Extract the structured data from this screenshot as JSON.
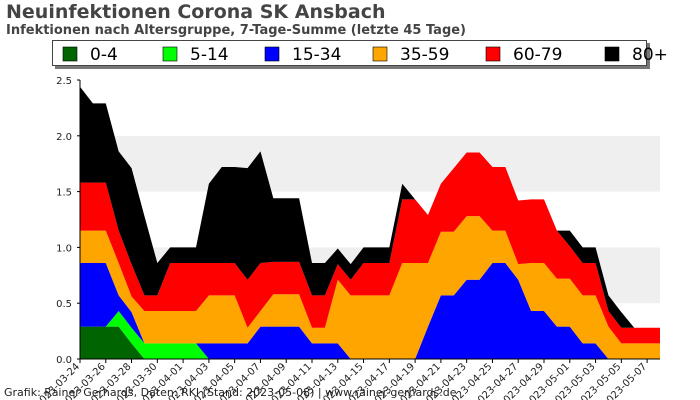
{
  "chart_title": "Neuinfektionen Corona SK Ansbach",
  "chart_subtitle": "Infektionen nach Altersgruppe, 7-Tage-Summe (letzte 45 Tage)",
  "credit": "Grafik: Rainer Gerhards, Daten: RKI (Stand: 2023-05-08) | www.rainer-gerhards.de",
  "chart_data": {
    "type": "area",
    "stacked": true,
    "title": "Neuinfektionen Corona SK Ansbach",
    "subtitle": "Infektionen nach Altersgruppe, 7-Tage-Summe (letzte 45 Tage)",
    "xlabel": "",
    "ylabel": "",
    "ylim": [
      0,
      2.5
    ],
    "yticks": [
      "0.0",
      "0.5",
      "1.0",
      "1.5",
      "2.0",
      "2.5"
    ],
    "grid": "alternating horizontal bands",
    "legend_position": "top",
    "x": [
      "2023-03-24",
      "2023-03-25",
      "2023-03-26",
      "2023-03-27",
      "2023-03-28",
      "2023-03-29",
      "2023-03-30",
      "2023-03-31",
      "2023-04-01",
      "2023-04-02",
      "2023-04-03",
      "2023-04-04",
      "2023-04-05",
      "2023-04-06",
      "2023-04-07",
      "2023-04-08",
      "2023-04-09",
      "2023-04-10",
      "2023-04-11",
      "2023-04-12",
      "2023-04-13",
      "2023-04-14",
      "2023-04-15",
      "2023-04-16",
      "2023-04-17",
      "2023-04-18",
      "2023-04-19",
      "2023-04-20",
      "2023-04-21",
      "2023-04-22",
      "2023-04-23",
      "2023-04-24",
      "2023-04-25",
      "2023-04-26",
      "2023-04-27",
      "2023-04-28",
      "2023-04-29",
      "2023-04-30",
      "2023-05-01",
      "2023-05-02",
      "2023-05-03",
      "2023-05-04",
      "2023-05-05",
      "2023-05-06",
      "2023-05-07",
      "2023-05-08"
    ],
    "tick_labels": [
      "2023-03-24",
      "2023-03-26",
      "2023-03-28",
      "2023-03-30",
      "2023-04-01",
      "2023-04-03",
      "2023-04-05",
      "2023-04-07",
      "2023-04-09",
      "2023-04-11",
      "2023-04-13",
      "2023-04-15",
      "2023-04-17",
      "2023-04-19",
      "2023-04-21",
      "2023-04-23",
      "2023-04-25",
      "2023-04-27",
      "2023-04-29",
      "2023-05-01",
      "2023-05-03",
      "2023-05-05",
      "2023-05-07"
    ],
    "series": [
      {
        "name": "0-4",
        "color": "#006400",
        "values": [
          0.29,
          0.29,
          0.29,
          0.29,
          0.14,
          0,
          0,
          0,
          0,
          0,
          0,
          0,
          0,
          0,
          0,
          0,
          0,
          0,
          0,
          0,
          0,
          0,
          0,
          0,
          0,
          0,
          0,
          0,
          0,
          0,
          0,
          0,
          0,
          0,
          0,
          0,
          0,
          0,
          0,
          0,
          0,
          0,
          0,
          0,
          0,
          0
        ]
      },
      {
        "name": "5-14",
        "color": "#00ff00",
        "values": [
          0,
          0,
          0,
          0.14,
          0.14,
          0.14,
          0.14,
          0.14,
          0.14,
          0.14,
          0,
          0,
          0,
          0,
          0,
          0,
          0,
          0,
          0,
          0,
          0,
          0,
          0,
          0,
          0,
          0,
          0,
          0,
          0,
          0,
          0,
          0,
          0,
          0,
          0,
          0,
          0,
          0,
          0,
          0,
          0,
          0,
          0,
          0,
          0,
          0
        ]
      },
      {
        "name": "15-34",
        "color": "#0000ff",
        "values": [
          0.57,
          0.57,
          0.57,
          0.14,
          0.14,
          0,
          0,
          0,
          0,
          0,
          0.14,
          0.14,
          0.14,
          0.14,
          0.29,
          0.29,
          0.29,
          0.29,
          0.14,
          0.14,
          0.14,
          0,
          0,
          0,
          0,
          0,
          0,
          0.29,
          0.57,
          0.57,
          0.71,
          0.71,
          0.86,
          0.86,
          0.71,
          0.43,
          0.43,
          0.29,
          0.29,
          0.14,
          0.14,
          0,
          0,
          0,
          0,
          0
        ]
      },
      {
        "name": "35-59",
        "color": "#ffa500",
        "values": [
          0.29,
          0.29,
          0.29,
          0.29,
          0.14,
          0.29,
          0.29,
          0.29,
          0.29,
          0.29,
          0.43,
          0.43,
          0.43,
          0.14,
          0.14,
          0.29,
          0.29,
          0.29,
          0.14,
          0.14,
          0.57,
          0.57,
          0.57,
          0.57,
          0.57,
          0.86,
          0.86,
          0.57,
          0.57,
          0.57,
          0.57,
          0.57,
          0.29,
          0.29,
          0.14,
          0.43,
          0.43,
          0.43,
          0.43,
          0.43,
          0.43,
          0.29,
          0.14,
          0.14,
          0.14,
          0.14
        ]
      },
      {
        "name": "60-79",
        "color": "#ff0000",
        "values": [
          0.43,
          0.43,
          0.43,
          0.29,
          0.29,
          0.14,
          0.14,
          0.43,
          0.43,
          0.43,
          0.29,
          0.29,
          0.29,
          0.43,
          0.43,
          0.29,
          0.29,
          0.29,
          0.29,
          0.29,
          0.14,
          0.14,
          0.29,
          0.29,
          0.29,
          0.57,
          0.57,
          0.43,
          0.43,
          0.57,
          0.57,
          0.57,
          0.57,
          0.57,
          0.57,
          0.57,
          0.57,
          0.43,
          0.29,
          0.29,
          0.29,
          0.14,
          0.14,
          0.14,
          0.14,
          0.14
        ]
      },
      {
        "name": "80+",
        "color": "#000000",
        "values": [
          0.86,
          0.71,
          0.71,
          0.71,
          0.86,
          0.71,
          0.29,
          0.14,
          0.14,
          0.14,
          0.71,
          0.86,
          0.86,
          1.0,
          1.0,
          0.57,
          0.57,
          0.57,
          0.29,
          0.29,
          0.14,
          0.14,
          0.14,
          0.14,
          0.14,
          0.14,
          0.0,
          0,
          0,
          0,
          0,
          0,
          0,
          0,
          0,
          0,
          0,
          0,
          0.14,
          0.14,
          0.14,
          0.14,
          0.14,
          0,
          0,
          0
        ]
      }
    ]
  }
}
